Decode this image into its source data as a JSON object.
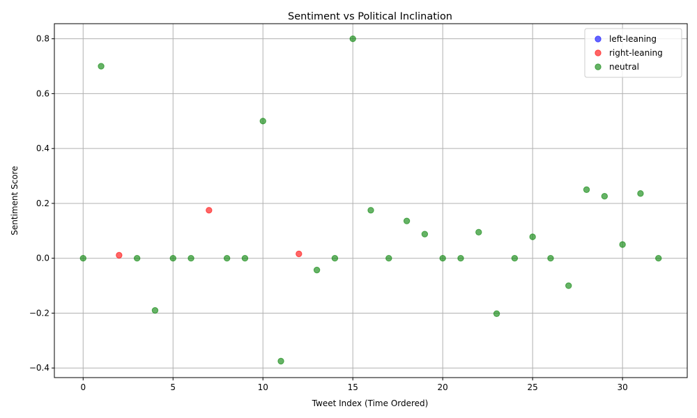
{
  "chart_data": {
    "type": "scatter",
    "title": "Sentiment vs Political Inclination",
    "xlabel": "Tweet Index (Time Ordered)",
    "ylabel": "Sentiment Score",
    "xlim": [
      -1.6,
      33.6
    ],
    "ylim": [
      -0.435,
      0.855
    ],
    "xticks": [
      0,
      5,
      10,
      15,
      20,
      25,
      30
    ],
    "yticks": [
      -0.4,
      -0.2,
      0.0,
      0.2,
      0.4,
      0.6,
      0.8
    ],
    "xtick_labels": [
      "0",
      "5",
      "10",
      "15",
      "20",
      "25",
      "30"
    ],
    "ytick_labels": [
      "−0.4",
      "−0.2",
      "0.0",
      "0.2",
      "0.4",
      "0.6",
      "0.8"
    ],
    "grid": true,
    "legend_position": "top-right",
    "series": [
      {
        "name": "left-leaning",
        "color": "#0000ff",
        "points": []
      },
      {
        "name": "right-leaning",
        "color": "#ff0000",
        "points": [
          [
            2,
            0.011
          ],
          [
            7,
            0.175
          ],
          [
            12,
            0.016
          ]
        ]
      },
      {
        "name": "neutral",
        "color": "#008000",
        "points": [
          [
            0,
            0.0
          ],
          [
            1,
            0.7
          ],
          [
            3,
            0.0
          ],
          [
            4,
            -0.19
          ],
          [
            5,
            0.0
          ],
          [
            6,
            0.0
          ],
          [
            8,
            0.0
          ],
          [
            9,
            0.0
          ],
          [
            10,
            0.5
          ],
          [
            11,
            -0.375
          ],
          [
            13,
            -0.043
          ],
          [
            14,
            0.0
          ],
          [
            15,
            0.8
          ],
          [
            16,
            0.175
          ],
          [
            17,
            0.0
          ],
          [
            18,
            0.136
          ],
          [
            19,
            0.088
          ],
          [
            20,
            0.0
          ],
          [
            21,
            0.0
          ],
          [
            22,
            0.095
          ],
          [
            23,
            -0.202
          ],
          [
            24,
            0.0
          ],
          [
            25,
            0.078
          ],
          [
            26,
            0.0
          ],
          [
            27,
            -0.1
          ],
          [
            28,
            0.25
          ],
          [
            29,
            0.226
          ],
          [
            30,
            0.05
          ],
          [
            31,
            0.236
          ],
          [
            32,
            0.0
          ]
        ]
      }
    ]
  }
}
